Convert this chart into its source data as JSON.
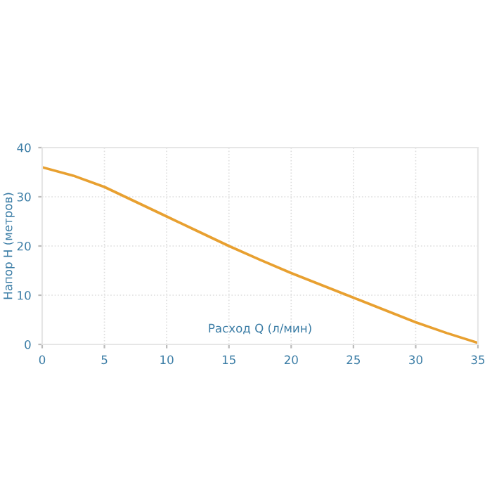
{
  "chart_data": {
    "type": "line",
    "xlabel": "Расход Q (л/мин)",
    "ylabel": "Напор H (метров)",
    "x": [
      0,
      2.5,
      5,
      7.5,
      10,
      12.5,
      15,
      17.5,
      20,
      22.5,
      25,
      27.5,
      30,
      32.5,
      35
    ],
    "series": [
      {
        "color": "#e8a030",
        "values": [
          36,
          34.3,
          32,
          29,
          26,
          23,
          20,
          17.2,
          14.5,
          12,
          9.5,
          7,
          4.5,
          2.3,
          0.3
        ]
      }
    ],
    "xlim": [
      0,
      35
    ],
    "ylim": [
      0,
      40
    ],
    "xticks": [
      0,
      5,
      10,
      15,
      20,
      25,
      30,
      35
    ],
    "yticks": [
      0,
      10,
      20,
      30,
      40
    ],
    "grid": true,
    "marker": "none",
    "line_style": "solid"
  }
}
